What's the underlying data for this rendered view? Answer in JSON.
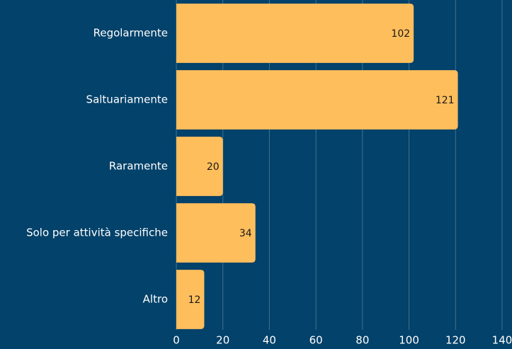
{
  "chart_data": {
    "type": "bar",
    "categories": [
      "Regolarmente",
      "Saltuariamente",
      "Raramente",
      "Solo per attività specifiche",
      "Altro"
    ],
    "values": [
      102,
      121,
      20,
      34,
      12
    ],
    "color": "#ffbe5c",
    "xlim": [
      0,
      140
    ],
    "xticks": [
      0,
      20,
      40,
      60,
      80,
      100,
      120,
      140
    ],
    "grid": true
  }
}
